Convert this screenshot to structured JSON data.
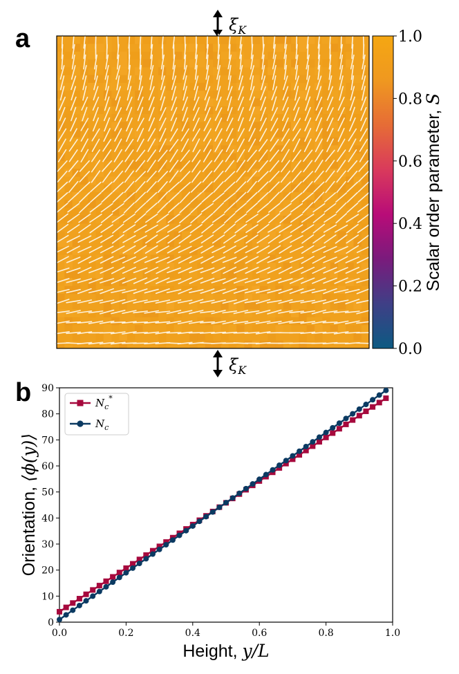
{
  "panel_a": {
    "label": "a",
    "top_marker": "ξ",
    "bottom_marker": "ξ",
    "marker_subscript": "K",
    "colorbar": {
      "label_text": "Scalar order parameter, ",
      "label_symbol": "S",
      "ticks": [
        "0.0",
        "0.2",
        "0.4",
        "0.6",
        "0.8",
        "1.0"
      ],
      "range": [
        0.0,
        1.0
      ],
      "colors": [
        "#0c5a82",
        "#3f3f86",
        "#7a1b7c",
        "#b80c78",
        "#d93a5c",
        "#e66c36",
        "#ef9820",
        "#f5a712"
      ]
    },
    "field": {
      "description_value_S": 0.92,
      "fill_color": "#f0a11e",
      "director_color": "#fdf2dc",
      "angle_bottom_deg": 0,
      "angle_top_deg": 90,
      "rows": 30,
      "cols": 28
    }
  },
  "panel_b": {
    "label": "b",
    "chart_data": {
      "type": "line",
      "xlabel_text": "Height, ",
      "xlabel_math": "y/L",
      "ylabel_text": "Orientation, ",
      "ylabel_math": "⟨ϕ(y)⟩",
      "xlim": [
        0.0,
        1.0
      ],
      "ylim": [
        0,
        90
      ],
      "xticks": [
        "0.0",
        "0.2",
        "0.4",
        "0.6",
        "0.8",
        "1.0"
      ],
      "yticks": [
        "0",
        "10",
        "20",
        "30",
        "40",
        "50",
        "60",
        "70",
        "80",
        "90"
      ],
      "series": [
        {
          "name": "N",
          "name_sub": "c",
          "name_sup": "*",
          "marker": "square",
          "color": "#a6093d",
          "x_start": 0.0,
          "x_end": 0.98,
          "n_points": 50,
          "y_start": 4.0,
          "y_end": 86.0
        },
        {
          "name": "N",
          "name_sub": "c",
          "name_sup": "",
          "marker": "circle",
          "color": "#0b3a62",
          "x_start": 0.0,
          "x_end": 0.98,
          "n_points": 50,
          "y_start": 1.0,
          "y_end": 89.0
        }
      ],
      "legend_position": "top-left"
    }
  }
}
